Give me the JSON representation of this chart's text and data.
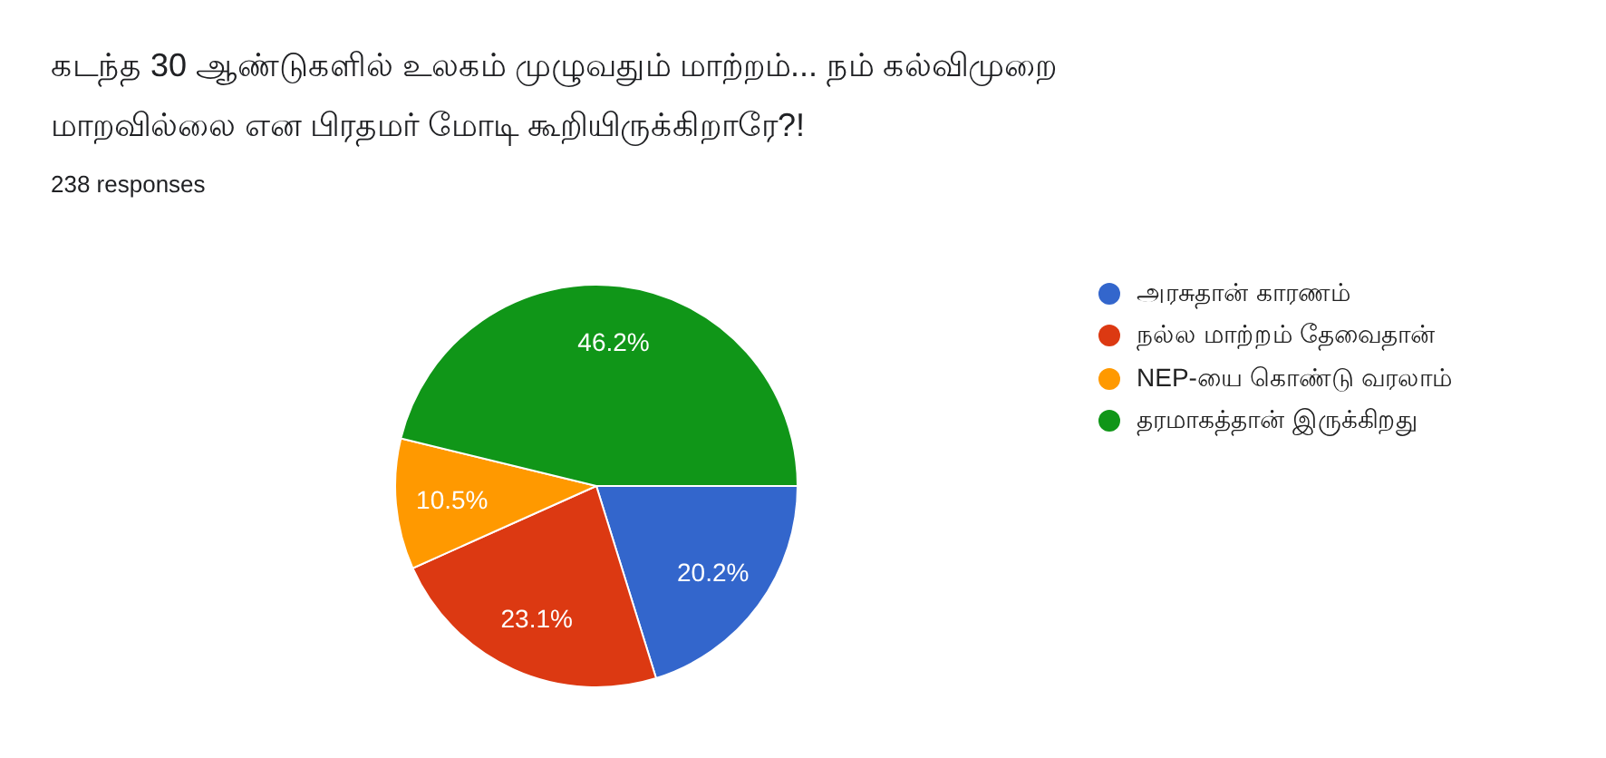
{
  "chart_data": {
    "type": "pie",
    "title": "கடந்த 30 ஆண்டுகளில் உலகம் முழுவதும் மாற்றம்... நம் கல்விமுறை மாறவில்லை என பிரதமர் மோடி கூறியிருக்கிறாரே?!",
    "subtitle": "238 responses",
    "categories": [
      "அரசுதான் காரணம்",
      "நல்ல மாற்றம் தேவைதான்",
      "NEP-யை கொண்டு வரலாம்",
      "தரமாகத்தான் இருக்கிறது"
    ],
    "values": [
      20.2,
      23.1,
      10.5,
      46.2
    ],
    "colors": [
      "#3366cc",
      "#dc3912",
      "#ff9900",
      "#109618"
    ],
    "value_labels": [
      "20.2%",
      "23.1%",
      "10.5%",
      "46.2%"
    ],
    "legend": "right"
  }
}
